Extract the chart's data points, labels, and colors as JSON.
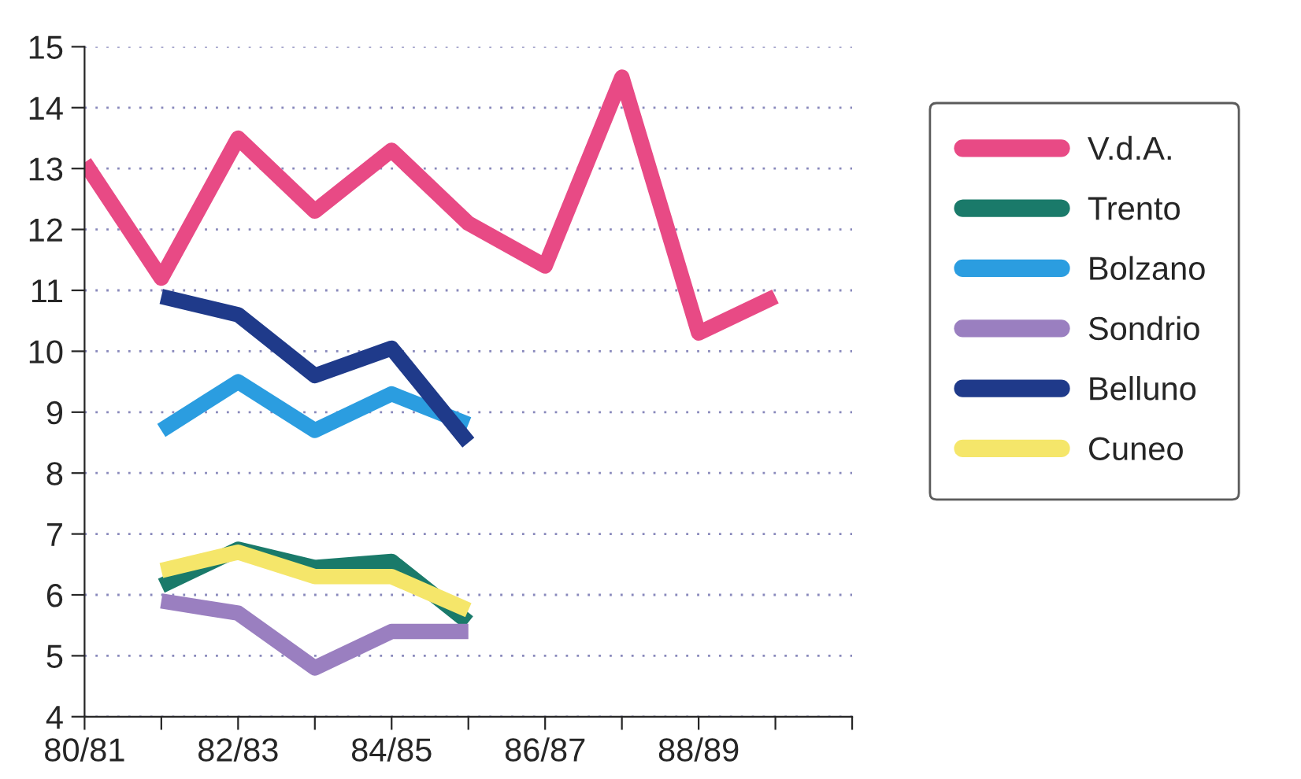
{
  "chart_data": {
    "type": "line",
    "categories": [
      "80/81",
      null,
      "82/83",
      null,
      "84/85",
      null,
      "86/87",
      null,
      "88/89",
      null,
      null
    ],
    "series": [
      {
        "name": "V.d.A.",
        "color": "#e84a85",
        "values": [
          13.1,
          11.2,
          13.5,
          12.3,
          13.3,
          12.1,
          11.4,
          14.5,
          10.3,
          10.9,
          null
        ]
      },
      {
        "name": "Trento",
        "color": "#1a7a6a",
        "values": [
          null,
          6.15,
          6.75,
          6.45,
          6.55,
          5.55,
          null,
          null,
          null,
          null,
          null
        ]
      },
      {
        "name": "Bolzano",
        "color": "#2b9de0",
        "values": [
          null,
          8.7,
          9.5,
          8.7,
          9.3,
          8.8,
          null,
          null,
          null,
          null,
          null
        ]
      },
      {
        "name": "Sondrio",
        "color": "#9a7fc0",
        "values": [
          null,
          5.9,
          5.7,
          4.8,
          5.4,
          5.4,
          null,
          null,
          null,
          null,
          null
        ]
      },
      {
        "name": "Belluno",
        "color": "#1f3a8a",
        "values": [
          null,
          10.9,
          10.6,
          9.6,
          10.05,
          8.5,
          null,
          null,
          null,
          null,
          null
        ]
      },
      {
        "name": "Cuneo",
        "color": "#f5e66a",
        "values": [
          null,
          6.4,
          6.7,
          6.3,
          6.3,
          5.75,
          null,
          null,
          null,
          null,
          null
        ]
      }
    ],
    "ylim": [
      4,
      15
    ],
    "yticks": [
      4,
      5,
      6,
      7,
      8,
      9,
      10,
      11,
      12,
      13,
      14,
      15
    ],
    "grid": "y",
    "legend": "right",
    "marker": "none",
    "line_style": "solid"
  }
}
